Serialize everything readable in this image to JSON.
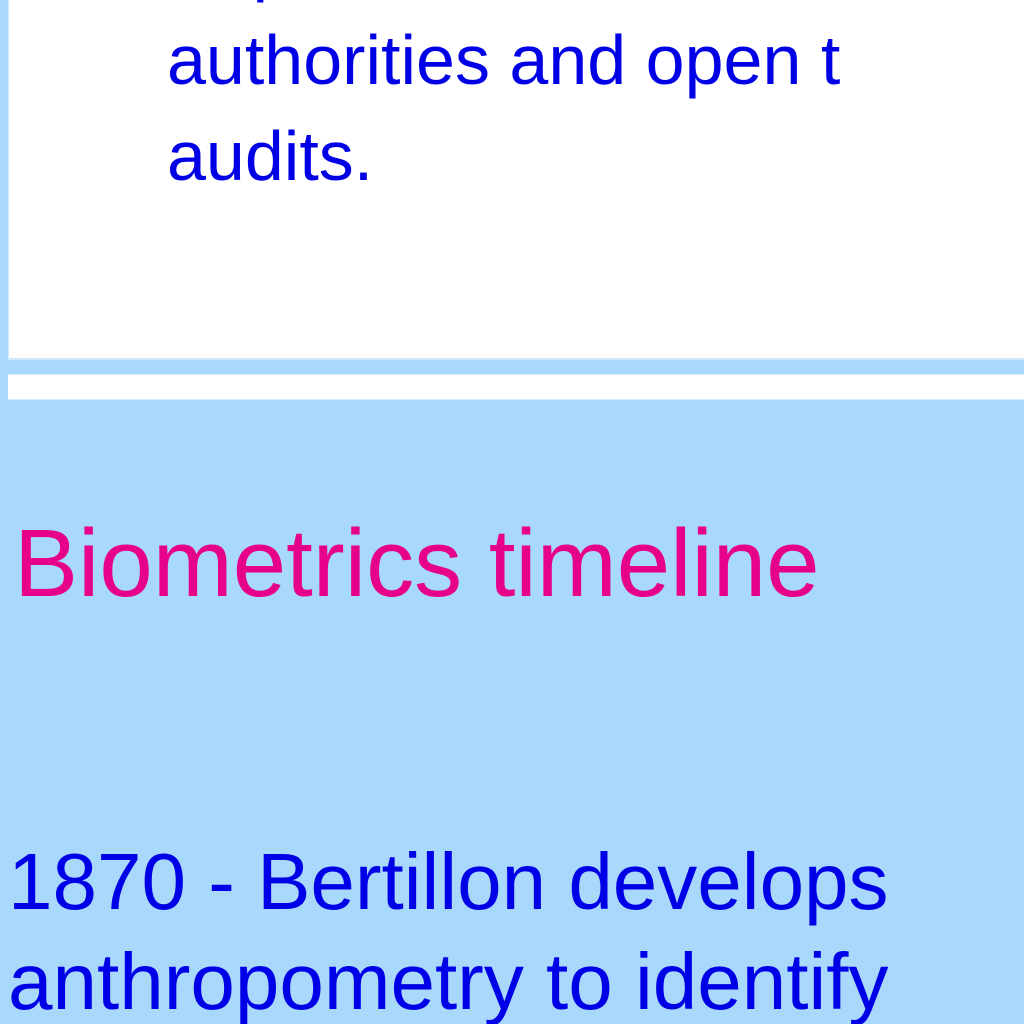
{
  "card": {
    "line_partial": "re-presented to elected",
    "line_1": "authorities and open t",
    "line_2": "audits."
  },
  "section": {
    "title": "Biometrics timeline"
  },
  "timeline": {
    "entries": [
      {
        "text": "1870 - Bertillon develops anthropometry to identify"
      }
    ]
  },
  "colors": {
    "page_background": "#a8d8fb",
    "card_background": "#ffffff",
    "body_text": "#0000e6",
    "heading_text": "#e6008a"
  }
}
